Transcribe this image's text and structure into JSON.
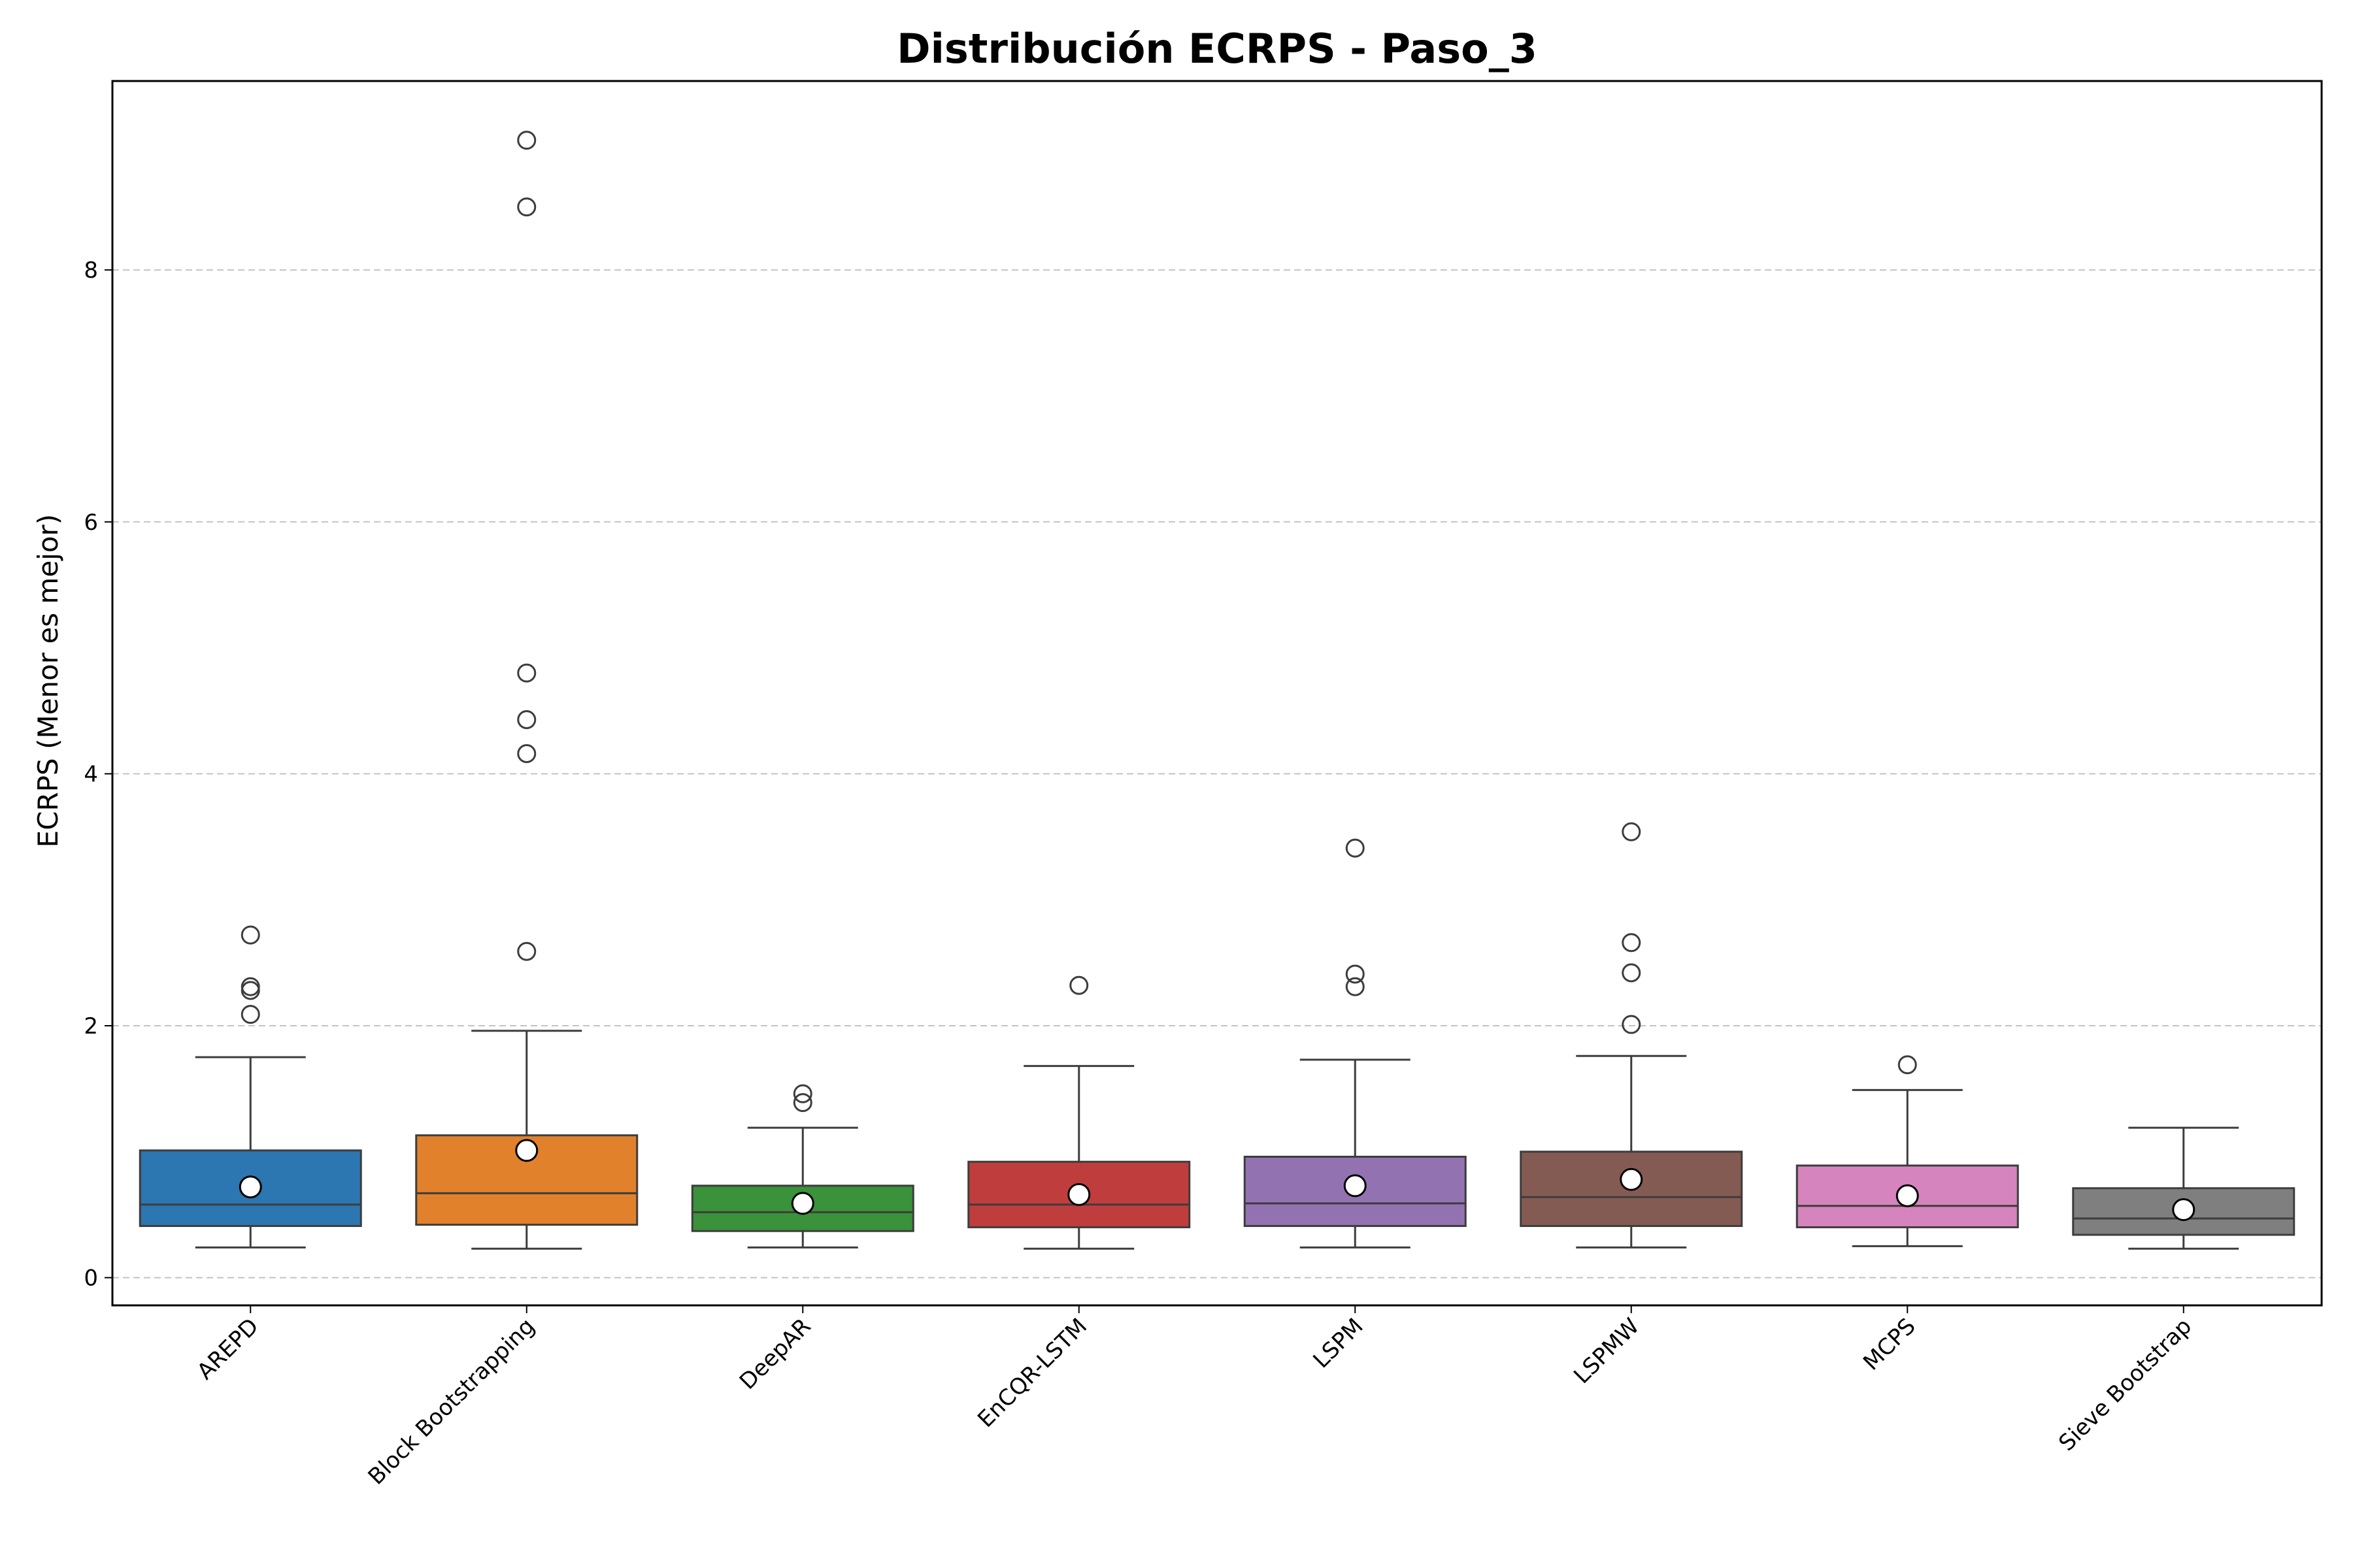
{
  "chart_data": {
    "type": "box",
    "title": "Distribución ECRPS - Paso_3",
    "xlabel": "",
    "ylabel": "ECRPS (Menor es mejor)",
    "ylim": [
      -0.22,
      9.5
    ],
    "yticks": [
      "0",
      "2",
      "4",
      "6",
      "8"
    ],
    "grid": "horizontal dashed",
    "categories": [
      "AREPD",
      "Block Bootstrapping",
      "DeepAR",
      "EnCQR-LSTM",
      "LSPM",
      "LSPMW",
      "MCPS",
      "Sieve Bootstrap"
    ],
    "series": [
      {
        "whisker_low": 0.24,
        "q1": 0.41,
        "median": 0.58,
        "q3": 1.01,
        "whisker_high": 1.75,
        "mean": 0.72,
        "outliers": [
          2.09,
          2.28,
          2.31,
          2.72
        ],
        "color": "#2c76b1"
      },
      {
        "whisker_low": 0.23,
        "q1": 0.42,
        "median": 0.67,
        "q3": 1.13,
        "whisker_high": 1.96,
        "mean": 1.01,
        "outliers": [
          2.59,
          4.16,
          4.43,
          4.8,
          8.5,
          9.03
        ],
        "color": "#e1812c"
      },
      {
        "whisker_low": 0.24,
        "q1": 0.37,
        "median": 0.52,
        "q3": 0.73,
        "whisker_high": 1.19,
        "mean": 0.59,
        "outliers": [
          1.39,
          1.46
        ],
        "color": "#3a923a"
      },
      {
        "whisker_low": 0.23,
        "q1": 0.4,
        "median": 0.58,
        "q3": 0.92,
        "whisker_high": 1.68,
        "mean": 0.66,
        "outliers": [
          2.32
        ],
        "color": "#c03d3e"
      },
      {
        "whisker_low": 0.24,
        "q1": 0.41,
        "median": 0.59,
        "q3": 0.96,
        "whisker_high": 1.73,
        "mean": 0.73,
        "outliers": [
          2.31,
          2.41,
          3.41
        ],
        "color": "#9372b2"
      },
      {
        "whisker_low": 0.24,
        "q1": 0.41,
        "median": 0.64,
        "q3": 1.0,
        "whisker_high": 1.76,
        "mean": 0.78,
        "outliers": [
          2.01,
          2.42,
          2.66,
          3.54
        ],
        "color": "#845b53"
      },
      {
        "whisker_low": 0.25,
        "q1": 0.4,
        "median": 0.57,
        "q3": 0.89,
        "whisker_high": 1.49,
        "mean": 0.65,
        "outliers": [
          1.69
        ],
        "color": "#d684bd"
      },
      {
        "whisker_low": 0.23,
        "q1": 0.34,
        "median": 0.47,
        "q3": 0.71,
        "whisker_high": 1.19,
        "mean": 0.54,
        "outliers": [],
        "color": "#7f7f7f"
      }
    ]
  }
}
